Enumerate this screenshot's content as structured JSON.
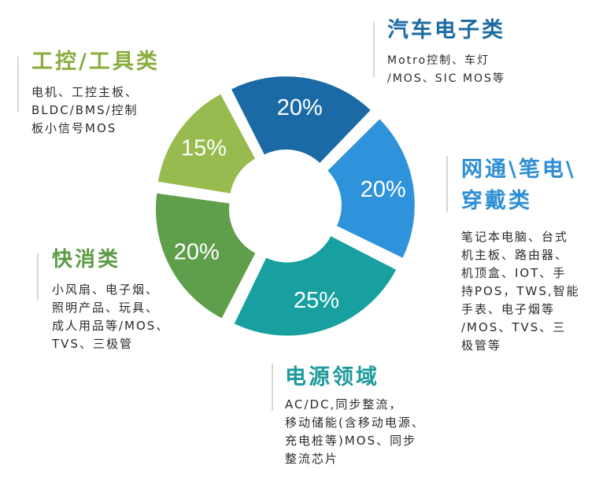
{
  "chart_data": {
    "type": "pie",
    "donut": true,
    "slices": [
      {
        "label": "汽车电子类",
        "value": 20,
        "value_label": "20%",
        "color": "#1b6aa6"
      },
      {
        "label": "网通\\笔电\\穿戴类",
        "value": 20,
        "value_label": "20%",
        "color": "#2f93db"
      },
      {
        "label": "电源领域",
        "value": 25,
        "value_label": "25%",
        "color": "#18a0a0"
      },
      {
        "label": "快消类",
        "value": 20,
        "value_label": "20%",
        "color": "#5f9e4a"
      },
      {
        "label": "工控/工具类",
        "value": 15,
        "value_label": "15%",
        "color": "#98bb4f"
      }
    ]
  },
  "annotations": {
    "auto": {
      "title": "汽车电子类",
      "desc": "Motro控制、车灯\n/MOS、SIC MOS等"
    },
    "network": {
      "title": "网通\\笔电\\\n穿戴类",
      "desc": "笔记本电脑、台式\n机主板、路由器、\n机顶盒、IOT、手\n持POS，TWS,智能\n手表、电子烟等\n/MOS、TVS、三\n极管等"
    },
    "power": {
      "title": "电源领域",
      "desc": "AC/DC,同步整流，\n移动储能(含移动电源、\n充电桩等)MOS、同步\n整流芯片"
    },
    "consumer": {
      "title": "快消类",
      "desc": "小风扇、电子烟、\n照明产品、玩具、\n成人用品等/MOS、\nTVS、三极管"
    },
    "industrial": {
      "title": "工控/工具类",
      "desc": "电机、工控主板、\nBLDC/BMS/控制\n板小信号MOS"
    }
  }
}
